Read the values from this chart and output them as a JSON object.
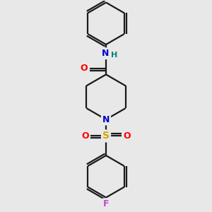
{
  "background_color": "#e8e8e8",
  "bond_color": "#1a1a1a",
  "atom_colors": {
    "O": "#ff0000",
    "N": "#0000cc",
    "S": "#ccaa00",
    "F": "#cc44cc",
    "H": "#008080",
    "C": "#1a1a1a"
  },
  "figsize": [
    3.0,
    3.0
  ],
  "dpi": 100,
  "lw": 1.6
}
